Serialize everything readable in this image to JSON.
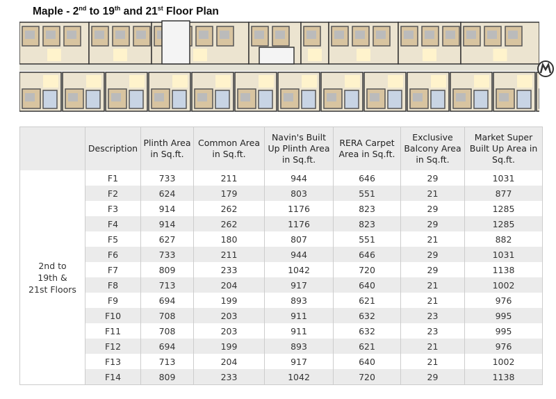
{
  "title": {
    "prefix": "Maple - 2",
    "sup1": "nd",
    "mid1": " to 19",
    "sup2": "th",
    "mid2": " and 21",
    "sup3": "st",
    "suffix": " Floor Plan"
  },
  "table": {
    "headers": [
      "",
      "Description",
      "Plinth Area in Sq.ft.",
      "Common Area in Sq.ft.",
      "Navin's Built Up Plinth Area in Sq.ft.",
      "RERA Carpet Area in Sq.ft.",
      "Exclusive Balcony Area in Sq.ft.",
      "Market Super Built Up Area in Sq.ft."
    ],
    "group_label": "2nd to 19th & 21st Floors",
    "rows": [
      [
        "F1",
        "733",
        "211",
        "944",
        "646",
        "29",
        "1031"
      ],
      [
        "F2",
        "624",
        "179",
        "803",
        "551",
        "21",
        "877"
      ],
      [
        "F3",
        "914",
        "262",
        "1176",
        "823",
        "29",
        "1285"
      ],
      [
        "F4",
        "914",
        "262",
        "1176",
        "823",
        "29",
        "1285"
      ],
      [
        "F5",
        "627",
        "180",
        "807",
        "551",
        "21",
        "882"
      ],
      [
        "F6",
        "733",
        "211",
        "944",
        "646",
        "29",
        "1031"
      ],
      [
        "F7",
        "809",
        "233",
        "1042",
        "720",
        "29",
        "1138"
      ],
      [
        "F8",
        "713",
        "204",
        "917",
        "640",
        "21",
        "1002"
      ],
      [
        "F9",
        "694",
        "199",
        "893",
        "621",
        "21",
        "976"
      ],
      [
        "F10",
        "708",
        "203",
        "911",
        "632",
        "23",
        "995"
      ],
      [
        "F11",
        "708",
        "203",
        "911",
        "632",
        "23",
        "995"
      ],
      [
        "F12",
        "694",
        "199",
        "893",
        "621",
        "21",
        "976"
      ],
      [
        "F13",
        "713",
        "204",
        "917",
        "640",
        "21",
        "1002"
      ],
      [
        "F14",
        "809",
        "233",
        "1042",
        "720",
        "29",
        "1138"
      ]
    ]
  }
}
